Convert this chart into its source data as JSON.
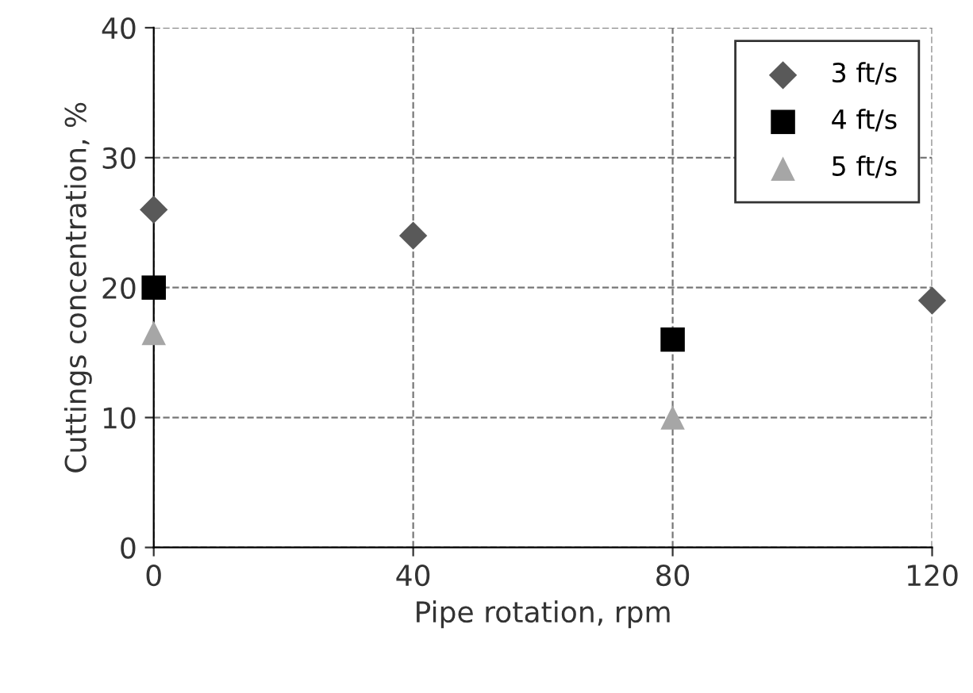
{
  "chart_data": {
    "type": "scatter",
    "xlabel": "Pipe rotation, rpm",
    "ylabel": "Cuttings concentration, %",
    "xlim": [
      0,
      120
    ],
    "xticks": [
      0,
      40,
      80,
      120
    ],
    "ylim": [
      0,
      40
    ],
    "yticks": [
      0,
      10,
      20,
      30,
      40
    ],
    "grid": true,
    "legend": "top right",
    "series": [
      {
        "name": "3 ft/s",
        "color": "#595959",
        "marker": "diamond",
        "x": [
          0,
          40,
          120
        ],
        "values": [
          26,
          24,
          19
        ]
      },
      {
        "name": "4 ft/s",
        "color": "#000000",
        "marker": "square",
        "x": [
          0,
          80
        ],
        "values": [
          20,
          16
        ]
      },
      {
        "name": "5 ft/s",
        "color": "#a6a6a6",
        "marker": "triangle",
        "x": [
          0,
          80
        ],
        "values": [
          16.5,
          10
        ]
      }
    ]
  }
}
